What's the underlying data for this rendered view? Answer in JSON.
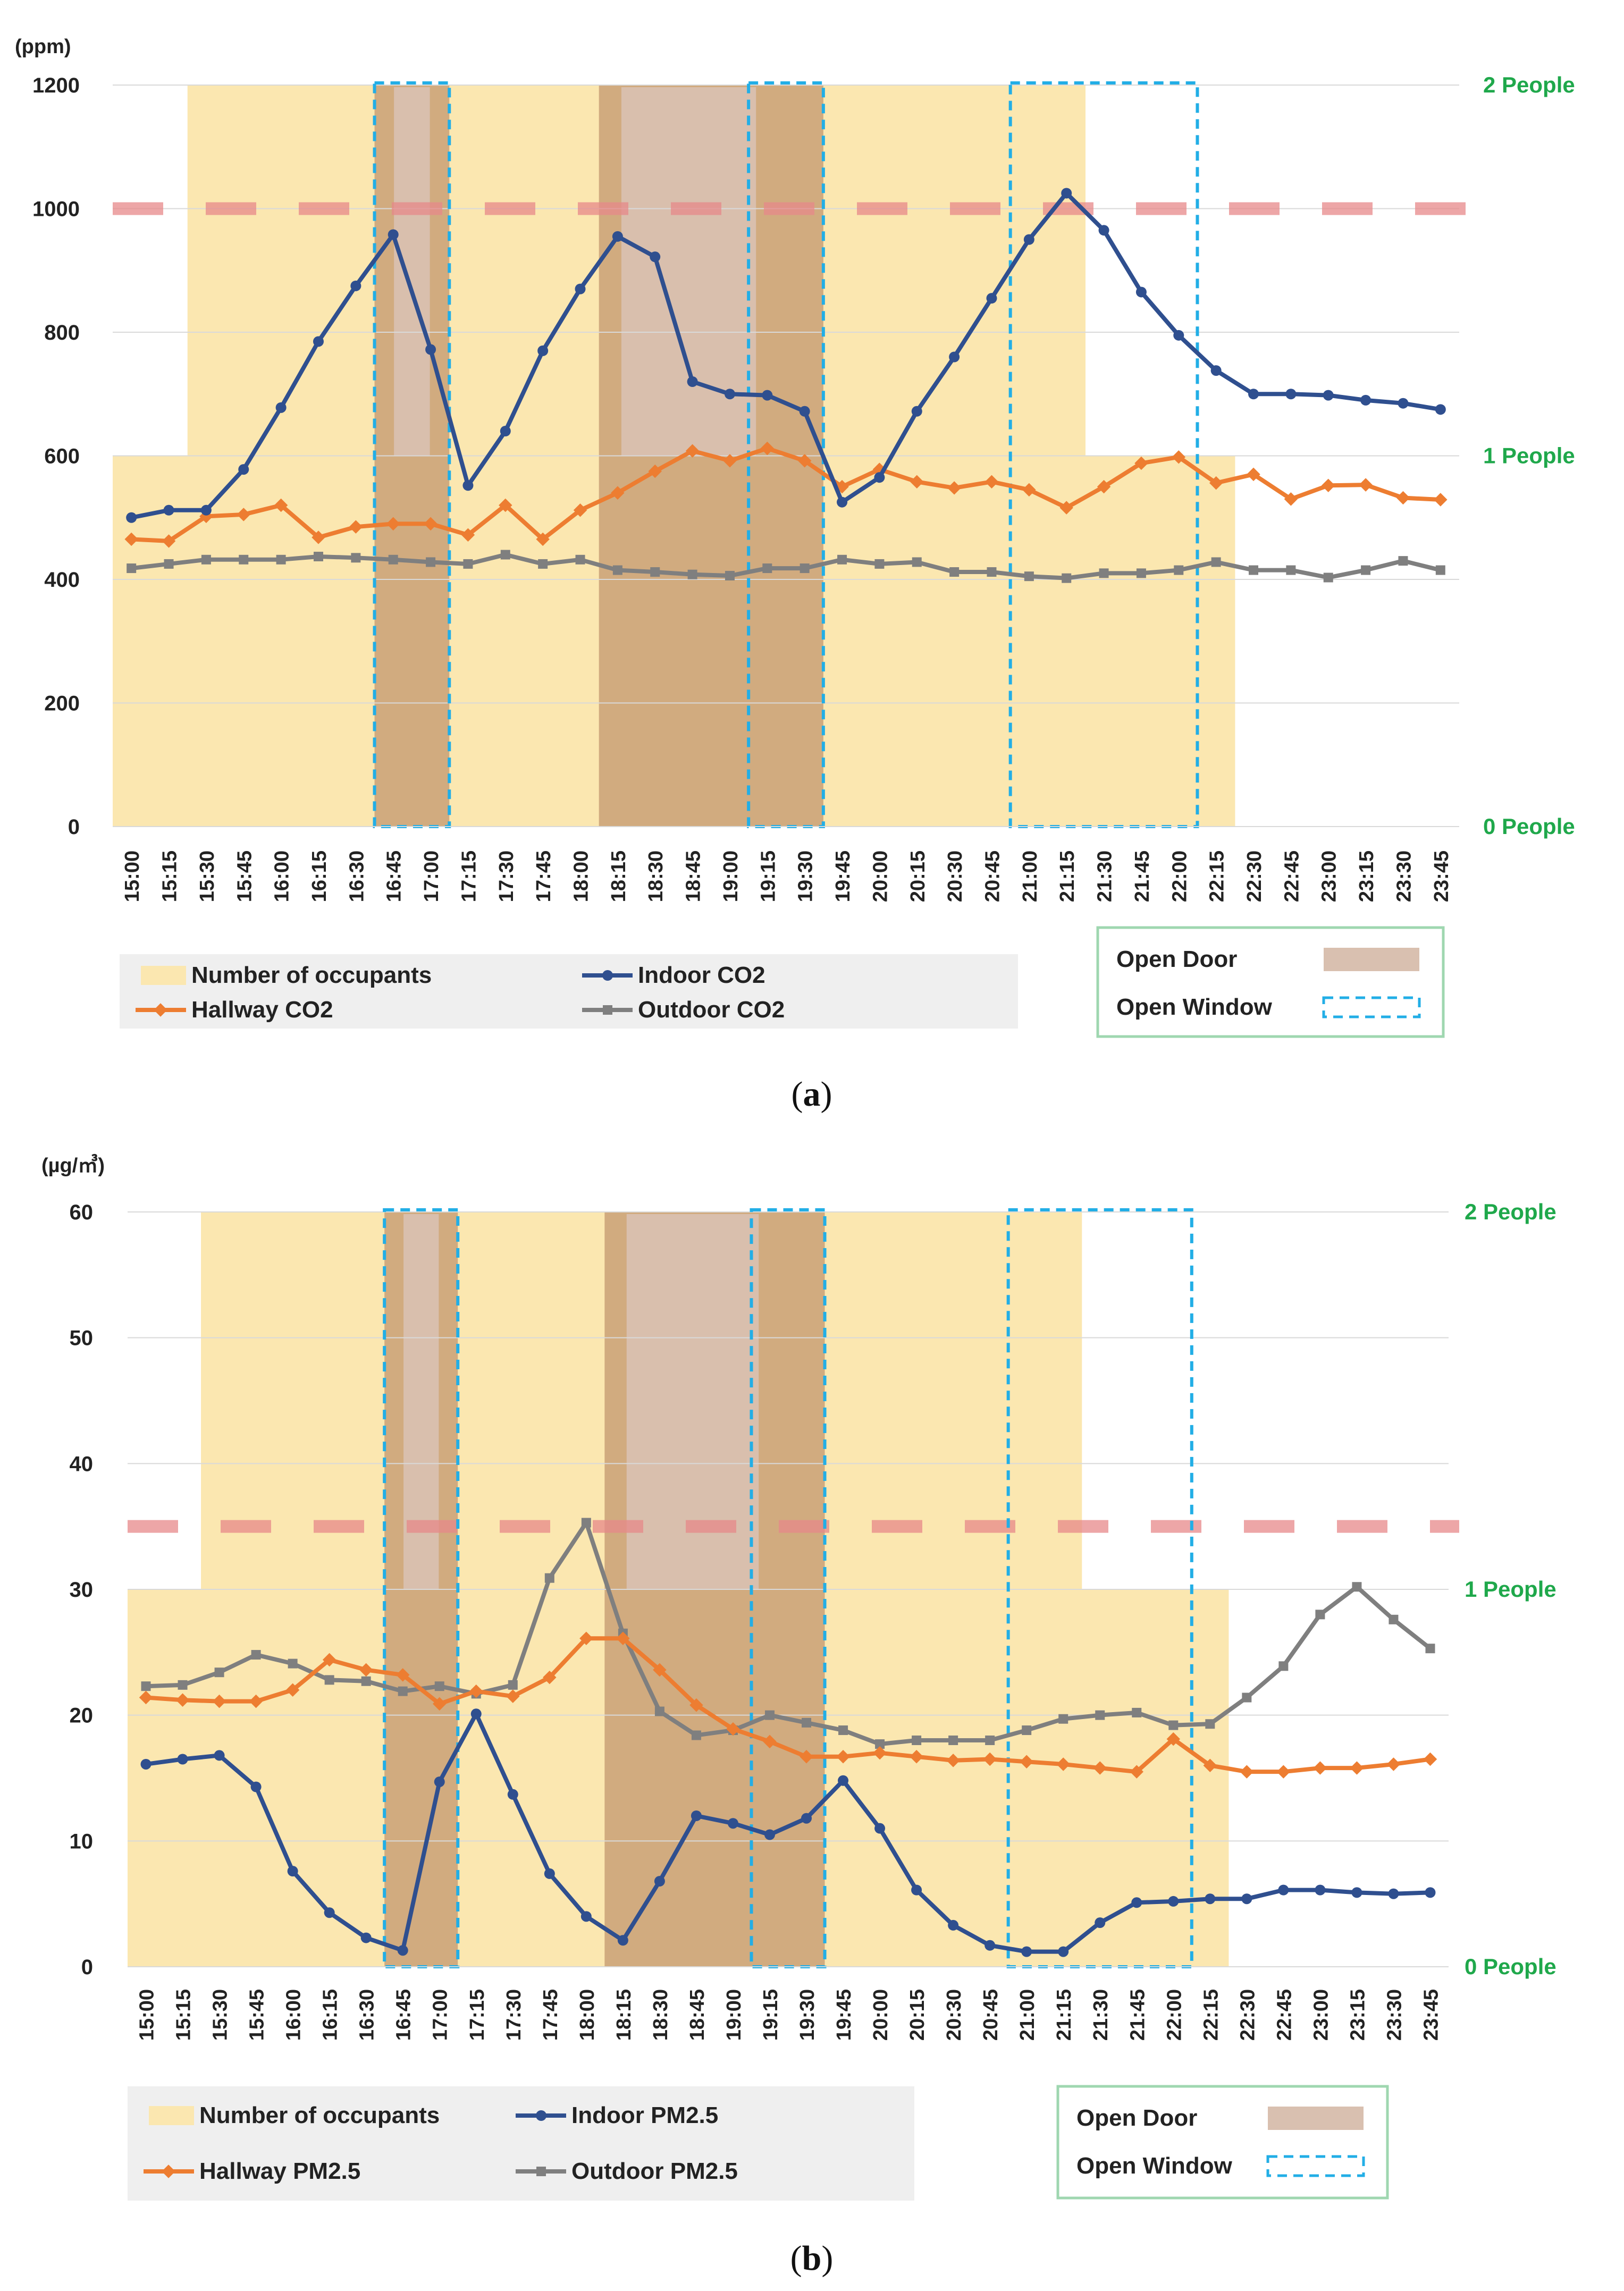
{
  "colors": {
    "occupants": "#fbe7b0",
    "door": "#d9c0b0",
    "window": "#22aee6",
    "threshold": "#e7898a",
    "indoor": "#2f4f8f",
    "hallway": "#ed7d31",
    "outdoor": "#7f7f7f",
    "people_label": "#1fa84b",
    "legend_border": "#9fd7b0",
    "legend_bg": "#efefef"
  },
  "chart_data": [
    {
      "id": "a",
      "type": "line",
      "caption_letter": "a",
      "y_unit": "(ppm)",
      "ylim": [
        0,
        1200
      ],
      "y_ticks": [
        "0",
        "200",
        "400",
        "600",
        "800",
        "1000",
        "1200"
      ],
      "threshold": 1000,
      "occupancy_ticks": [
        "0 People",
        "1 People",
        "2 People"
      ],
      "categories": [
        "15:00",
        "15:15",
        "15:30",
        "15:45",
        "16:00",
        "16:15",
        "16:30",
        "16:45",
        "17:00",
        "17:15",
        "17:30",
        "17:45",
        "18:00",
        "18:15",
        "18:30",
        "18:45",
        "19:00",
        "19:15",
        "19:30",
        "19:45",
        "20:00",
        "20:15",
        "20:30",
        "20:45",
        "21:00",
        "21:15",
        "21:30",
        "21:45",
        "22:00",
        "22:15",
        "22:30",
        "22:45",
        "23:00",
        "23:15",
        "23:30",
        "23:45"
      ],
      "occupants": [
        1,
        1,
        2,
        2,
        2,
        2,
        2,
        2,
        2,
        2,
        2,
        2,
        2,
        2,
        2,
        2,
        2,
        2,
        2,
        2,
        2,
        2,
        2,
        2,
        2,
        2,
        1,
        1,
        1,
        1,
        0,
        0,
        0,
        0,
        0,
        0
      ],
      "open_door": [
        [
          16.75,
          17.25
        ],
        [
          18.25,
          19.75
        ]
      ],
      "open_door_full": [
        [
          16.75,
          17.25
        ],
        [
          18.25,
          19.75
        ]
      ],
      "open_window": [
        [
          16.75,
          17.25
        ],
        [
          19.25,
          19.75
        ],
        [
          21.0,
          22.25
        ]
      ],
      "series": [
        {
          "name": "Indoor CO2",
          "key": "indoor",
          "values": [
            500,
            512,
            512,
            578,
            678,
            785,
            875,
            958,
            772,
            552,
            640,
            770,
            870,
            955,
            922,
            720,
            700,
            698,
            672,
            525,
            565,
            672,
            760,
            855,
            950,
            1025,
            965,
            865,
            795,
            738,
            700,
            700,
            698,
            690,
            685,
            675
          ]
        },
        {
          "name": "Hallway CO2",
          "key": "hallway",
          "values": [
            465,
            462,
            502,
            505,
            520,
            468,
            485,
            490,
            490,
            472,
            520,
            465,
            512,
            540,
            575,
            608,
            592,
            612,
            592,
            550,
            578,
            558,
            548,
            558,
            545,
            516,
            550,
            588,
            598,
            556,
            570,
            530,
            552,
            553,
            532,
            529
          ]
        },
        {
          "name": "Outdoor CO2",
          "key": "outdoor",
          "values": [
            418,
            425,
            432,
            432,
            432,
            437,
            435,
            432,
            428,
            425,
            440,
            425,
            432,
            415,
            412,
            408,
            406,
            418,
            418,
            432,
            425,
            428,
            412,
            412,
            405,
            402,
            410,
            410,
            415,
            428,
            415,
            415,
            403,
            415,
            430,
            415
          ]
        }
      ],
      "legend": {
        "occupants": "Number of occupants",
        "indoor": "Indoor CO2",
        "hallway": "Hallway CO2",
        "outdoor": "Outdoor CO2",
        "open_door": "Open Door",
        "open_window": "Open Window"
      }
    },
    {
      "id": "b",
      "type": "line",
      "caption_letter": "b",
      "y_unit": "(µg/㎥)",
      "ylim": [
        0,
        60
      ],
      "y_ticks": [
        "0",
        "10",
        "20",
        "30",
        "40",
        "50",
        "60"
      ],
      "threshold": 35,
      "occupancy_ticks": [
        "0 People",
        "1 People",
        "2 People"
      ],
      "categories": [
        "15:00",
        "15:15",
        "15:30",
        "15:45",
        "16:00",
        "16:15",
        "16:30",
        "16:45",
        "17:00",
        "17:15",
        "17:30",
        "17:45",
        "18:00",
        "18:15",
        "18:30",
        "18:45",
        "19:00",
        "19:15",
        "19:30",
        "19:45",
        "20:00",
        "20:15",
        "20:30",
        "20:45",
        "21:00",
        "21:15",
        "21:30",
        "21:45",
        "22:00",
        "22:15",
        "22:30",
        "22:45",
        "23:00",
        "23:15",
        "23:30",
        "23:45"
      ],
      "occupants": [
        1,
        1,
        2,
        2,
        2,
        2,
        2,
        2,
        2,
        2,
        2,
        2,
        2,
        2,
        2,
        2,
        2,
        2,
        2,
        2,
        2,
        2,
        2,
        2,
        2,
        2,
        1,
        1,
        1,
        1,
        0,
        0,
        0,
        0,
        0,
        0
      ],
      "open_door": [
        [
          16.75,
          17.25
        ],
        [
          18.25,
          19.75
        ]
      ],
      "series": [
        {
          "name": "Indoor PM2.5",
          "key": "indoor",
          "values": [
            16.1,
            16.5,
            16.8,
            14.3,
            7.6,
            4.3,
            2.3,
            1.3,
            14.7,
            20.1,
            13.7,
            7.4,
            4.0,
            2.1,
            6.8,
            12.0,
            11.4,
            10.5,
            11.8,
            14.8,
            11.0,
            6.1,
            3.3,
            1.7,
            1.2,
            1.2,
            3.5,
            5.1,
            5.2,
            5.4,
            5.4,
            6.1,
            6.1,
            5.9,
            5.8,
            5.9
          ]
        },
        {
          "name": "Hallway PM2.5",
          "key": "hallway",
          "values": [
            21.4,
            21.2,
            21.1,
            21.1,
            22.0,
            24.4,
            23.6,
            23.2,
            20.9,
            21.9,
            21.5,
            23.0,
            26.1,
            26.1,
            23.6,
            20.8,
            18.9,
            17.9,
            16.7,
            16.7,
            17.0,
            16.7,
            16.4,
            16.5,
            16.3,
            16.1,
            15.8,
            15.5,
            18.1,
            16.0,
            15.5,
            15.5,
            15.8,
            15.8,
            16.1,
            16.5
          ]
        },
        {
          "name": "Outdoor PM2.5",
          "key": "outdoor",
          "values": [
            22.3,
            22.4,
            23.4,
            24.8,
            24.1,
            22.8,
            22.7,
            21.9,
            22.3,
            21.7,
            22.4,
            30.9,
            35.3,
            26.5,
            20.3,
            18.4,
            18.8,
            20.0,
            19.4,
            18.8,
            17.7,
            18.0,
            18.0,
            18.0,
            18.8,
            19.7,
            20.0,
            20.2,
            19.2,
            19.3,
            21.4,
            23.9,
            28.0,
            30.2,
            27.6,
            25.3
          ]
        }
      ],
      "legend": {
        "occupants": "Number of occupants",
        "indoor": "Indoor PM2.5",
        "hallway": "Hallway PM2.5",
        "outdoor": "Outdoor PM2.5",
        "open_door": "Open Door",
        "open_window": "Open Window"
      }
    }
  ]
}
